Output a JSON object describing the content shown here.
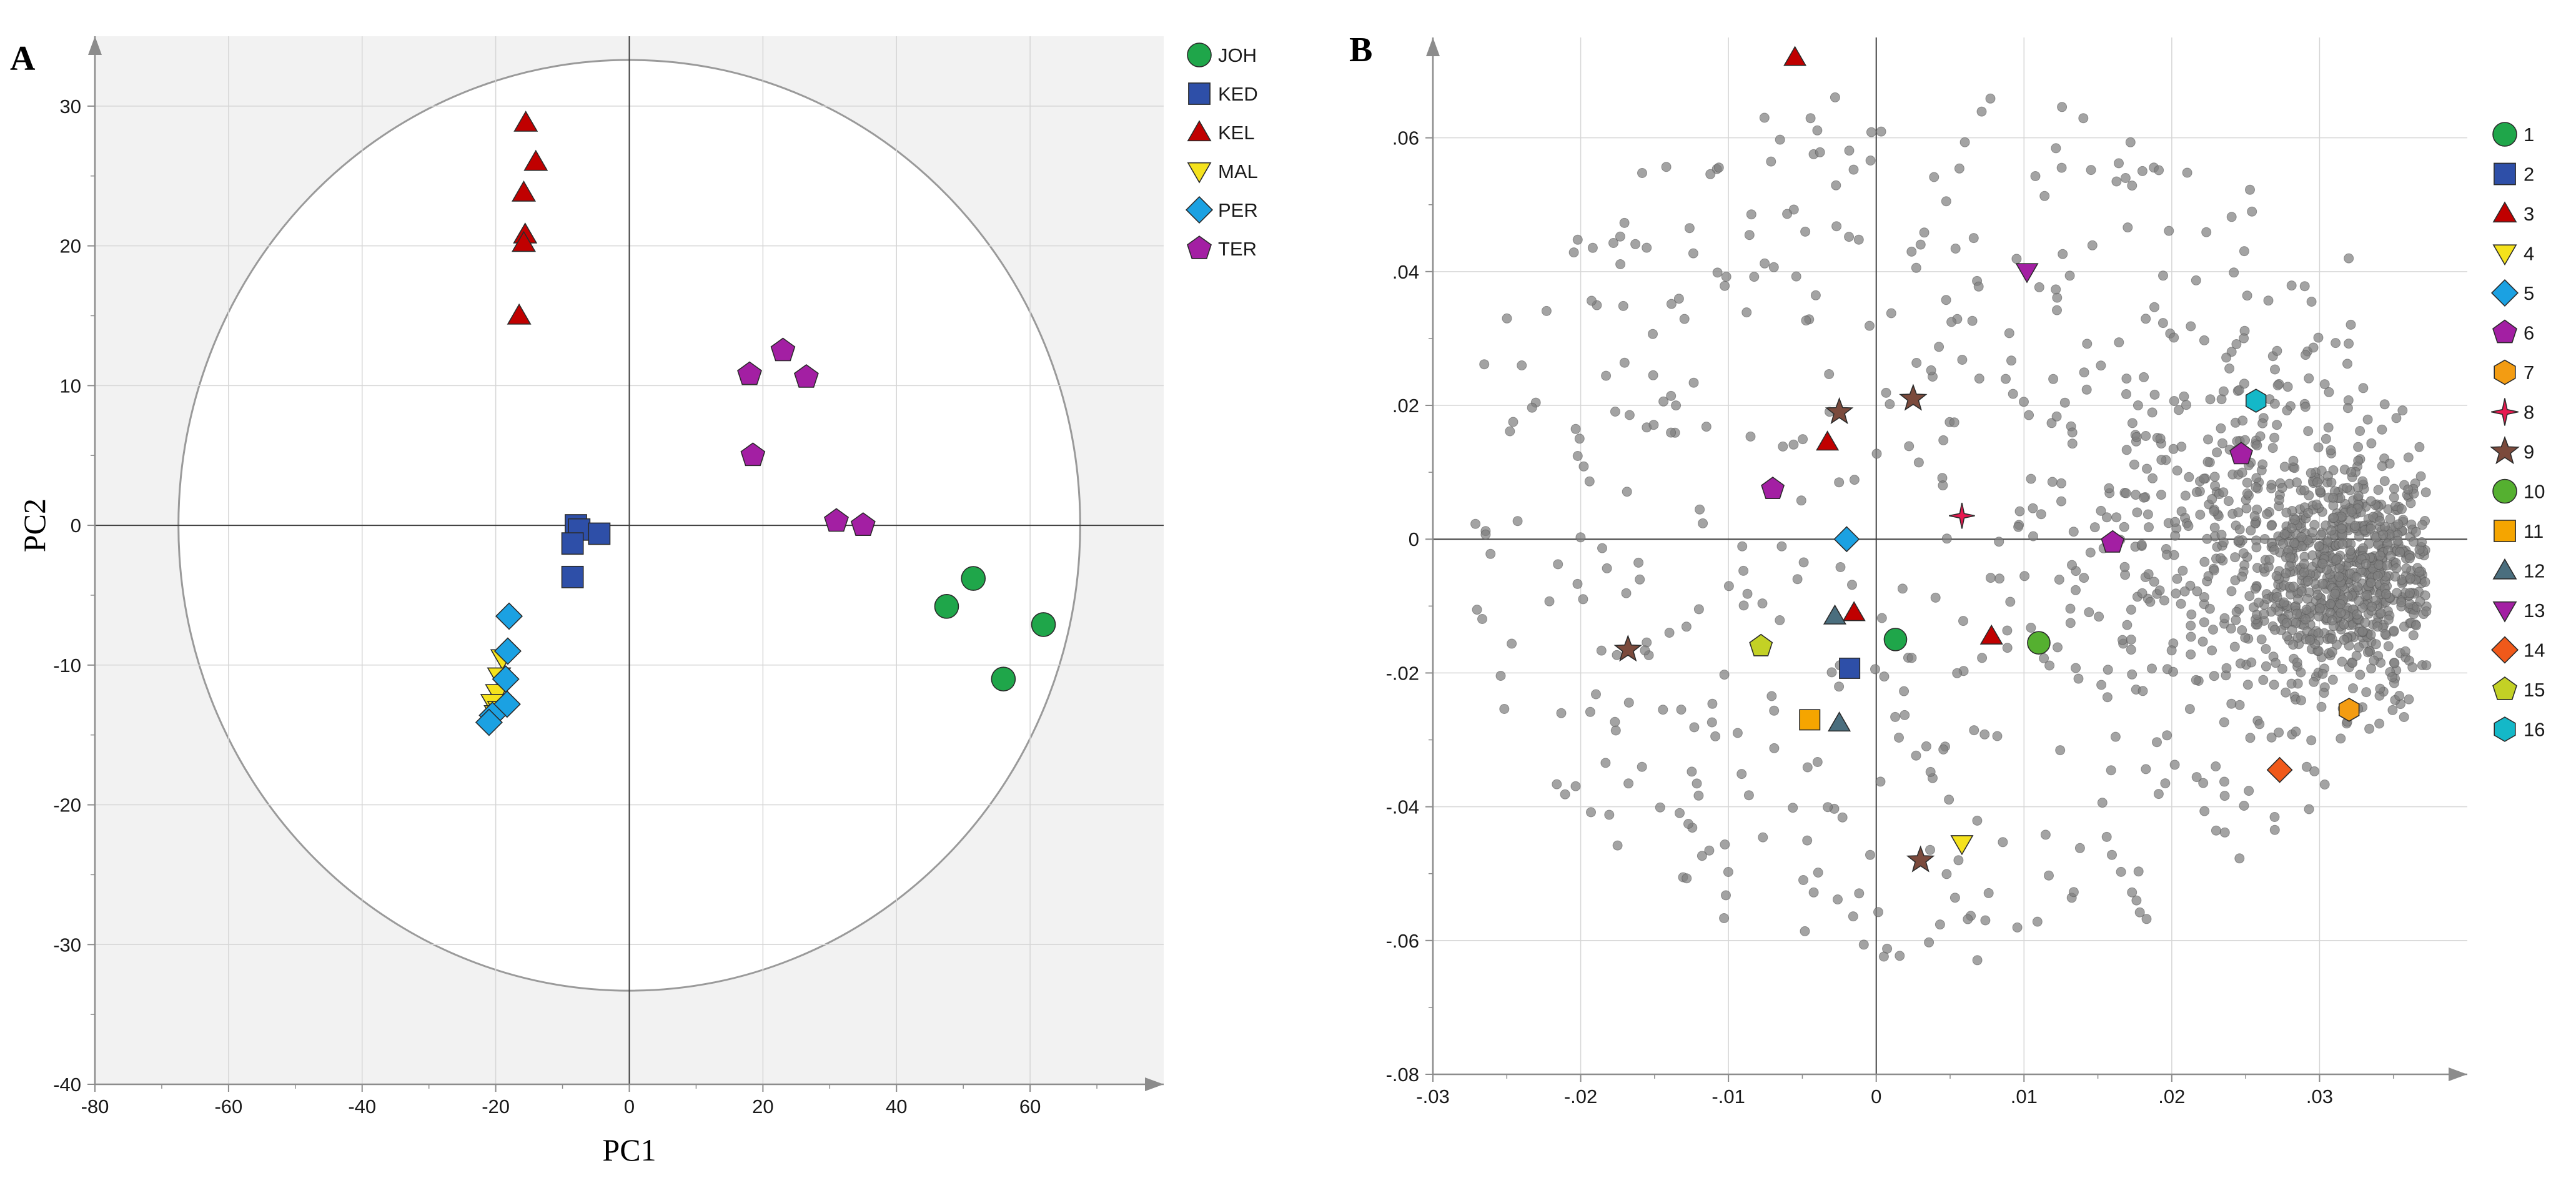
{
  "chart_data": [
    {
      "panel": "A",
      "type": "scatter",
      "xlabel": "PC1",
      "ylabel": "PC2",
      "xlim": [
        -80,
        80
      ],
      "ylim": [
        -40,
        35
      ],
      "xticks": [
        -80,
        -60,
        -40,
        -20,
        0,
        20,
        40,
        60
      ],
      "yticks": [
        -40,
        -30,
        -20,
        -10,
        0,
        10,
        20,
        30
      ],
      "grid": true,
      "ellipse": {
        "cx": 0,
        "cy": 0,
        "rx": 67.5,
        "ry": 33.3
      },
      "legend_position": "top-right",
      "series": [
        {
          "name": "JOH",
          "shape": "circle",
          "color": "#1fa64a",
          "points": [
            [
              47.5,
              -5.8
            ],
            [
              51.5,
              -3.8
            ],
            [
              56,
              -11
            ],
            [
              62,
              -7.1
            ]
          ]
        },
        {
          "name": "KED",
          "shape": "square",
          "color": "#2e4fa8",
          "points": [
            [
              -8,
              0
            ],
            [
              -7.5,
              -0.3
            ],
            [
              -4.5,
              -0.6
            ],
            [
              -8.5,
              -1.3
            ],
            [
              -8.5,
              -3.7
            ]
          ]
        },
        {
          "name": "KEL",
          "shape": "triangle-up",
          "color": "#c00000",
          "points": [
            [
              -15.5,
              28.8
            ],
            [
              -14,
              26
            ],
            [
              -15.8,
              23.8
            ],
            [
              -15.6,
              20.8
            ],
            [
              -15.8,
              20.2
            ],
            [
              -16.5,
              15
            ]
          ]
        },
        {
          "name": "MAL",
          "shape": "triangle-down",
          "color": "#f5e21c",
          "points": [
            [
              -19,
              -9.5
            ],
            [
              -19.5,
              -10.8
            ],
            [
              -19.8,
              -12
            ],
            [
              -20.5,
              -12.7
            ],
            [
              -19.5,
              -13.2
            ],
            [
              -20,
              -13.5
            ]
          ]
        },
        {
          "name": "PER",
          "shape": "diamond",
          "color": "#1ba1e2",
          "points": [
            [
              -18,
              -6.5
            ],
            [
              -18.2,
              -9
            ],
            [
              -18.5,
              -11
            ],
            [
              -18.3,
              -12.8
            ],
            [
              -20.5,
              -13.6
            ],
            [
              -21,
              -14.1
            ]
          ]
        },
        {
          "name": "TER",
          "shape": "pentagon",
          "color": "#a31fa3",
          "points": [
            [
              23,
              12.5
            ],
            [
              18,
              10.8
            ],
            [
              26.5,
              10.6
            ],
            [
              18.5,
              5
            ],
            [
              31,
              0.3
            ],
            [
              35,
              0
            ]
          ]
        }
      ]
    },
    {
      "panel": "B",
      "type": "scatter",
      "xlim": [
        -0.03,
        0.04
      ],
      "ylim": [
        -0.08,
        0.075
      ],
      "xticks": [
        -0.03,
        -0.02,
        -0.01,
        0,
        0.01,
        0.02,
        0.03
      ],
      "yticks": [
        -0.08,
        -0.06,
        -0.04,
        -0.02,
        0,
        0.02,
        0.04,
        0.06
      ],
      "grid": true,
      "legend_position": "right",
      "background_cloud": {
        "count": 1500,
        "color": "#7f7f7f",
        "note": "loading-plot variables"
      },
      "series": [
        {
          "name": "1",
          "shape": "circle",
          "color": "#1fa64a",
          "points": [
            [
              0.0013,
              -0.015
            ]
          ]
        },
        {
          "name": "2",
          "shape": "square",
          "color": "#2e4fa8",
          "points": [
            [
              -0.0018,
              -0.0193
            ]
          ]
        },
        {
          "name": "3",
          "shape": "triangle-up",
          "color": "#c00000",
          "points": [
            [
              -0.0055,
              0.072
            ],
            [
              -0.0033,
              0.0145
            ],
            [
              -0.0015,
              -0.011
            ],
            [
              0.0078,
              -0.0145
            ]
          ]
        },
        {
          "name": "4",
          "shape": "triangle-down",
          "color": "#f5e21c",
          "points": [
            [
              0.0058,
              -0.0455
            ]
          ]
        },
        {
          "name": "5",
          "shape": "diamond",
          "color": "#1ba1e2",
          "points": [
            [
              -0.002,
              0
            ]
          ]
        },
        {
          "name": "6",
          "shape": "pentagon",
          "color": "#a31fa3",
          "points": [
            [
              -0.007,
              0.0075
            ],
            [
              0.016,
              -0.0005
            ],
            [
              0.0247,
              0.0127
            ]
          ]
        },
        {
          "name": "7",
          "shape": "hexagon",
          "color": "#f39c12",
          "points": [
            [
              0.032,
              -0.0255
            ]
          ]
        },
        {
          "name": "8",
          "shape": "cross-star",
          "color": "#e8194f",
          "points": [
            [
              0.0058,
              0.0035
            ]
          ]
        },
        {
          "name": "9",
          "shape": "star",
          "color": "#7b4a3c",
          "points": [
            [
              -0.0025,
              0.019
            ],
            [
              0.0025,
              0.021
            ],
            [
              -0.0168,
              -0.0165
            ],
            [
              0.003,
              -0.048
            ]
          ]
        },
        {
          "name": "10",
          "shape": "circle",
          "color": "#55b030",
          "points": [
            [
              0.011,
              -0.0155
            ]
          ]
        },
        {
          "name": "11",
          "shape": "square",
          "color": "#f5a500",
          "points": [
            [
              -0.0045,
              -0.027
            ]
          ]
        },
        {
          "name": "12",
          "shape": "triangle-up",
          "color": "#4a6e7e",
          "points": [
            [
              -0.0028,
              -0.0115
            ],
            [
              -0.0025,
              -0.0275
            ]
          ]
        },
        {
          "name": "13",
          "shape": "triangle-down",
          "color": "#a31fa3",
          "points": [
            [
              0.0102,
              0.04
            ]
          ]
        },
        {
          "name": "14",
          "shape": "diamond",
          "color": "#f0591a",
          "points": [
            [
              0.0273,
              -0.0345
            ]
          ]
        },
        {
          "name": "15",
          "shape": "pentagon",
          "color": "#c3d125",
          "points": [
            [
              -0.0078,
              -0.016
            ]
          ]
        },
        {
          "name": "16",
          "shape": "hexagon",
          "color": "#14b8c8",
          "points": [
            [
              0.0257,
              0.0207
            ]
          ]
        }
      ]
    }
  ]
}
